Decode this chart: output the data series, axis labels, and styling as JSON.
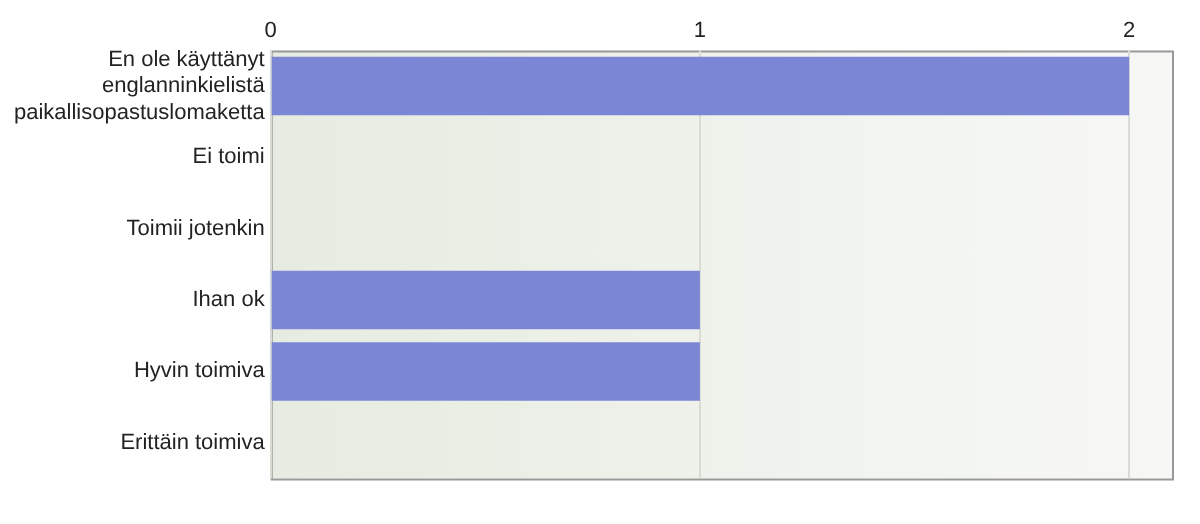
{
  "chart_data": {
    "type": "bar",
    "orientation": "horizontal",
    "categories": [
      "En ole käyttänyt englanninkielistä paikallisopastuslomaketta",
      "Ei toimi",
      "Toimii jotenkin",
      "Ihan ok",
      "Hyvin toimiva",
      "Erittäin toimiva"
    ],
    "values": [
      2,
      0,
      0,
      1,
      1,
      0
    ],
    "color": "#7b86d4",
    "xlim": [
      0,
      2.1
    ],
    "xticks": [
      0,
      1,
      2
    ],
    "grid": "x",
    "legend": false
  }
}
